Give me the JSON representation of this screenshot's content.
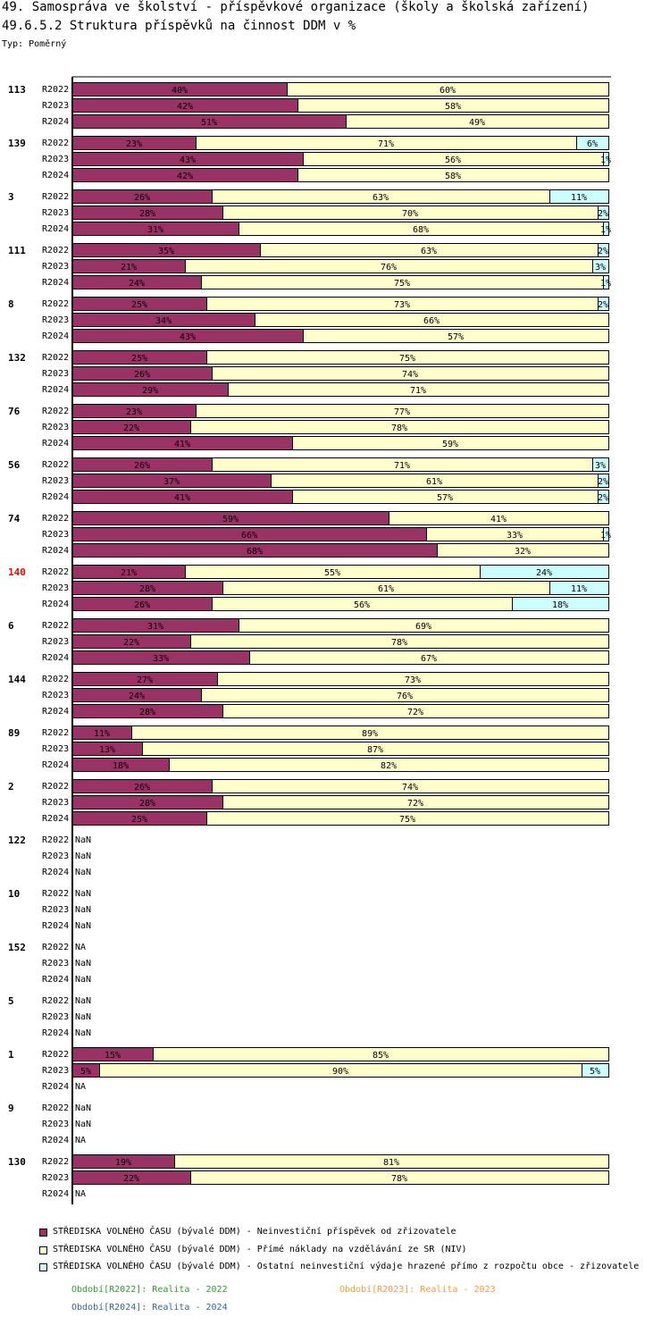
{
  "header": {
    "title": "49. Samospráva ve školství - příspěvkové organizace (školy a školská zařízení)",
    "subtitle": "49.6.5.2 Struktura příspěvků na činnost DDM v %",
    "type_label": "Typ: Poměrný"
  },
  "chart_data": {
    "type": "bar",
    "orientation": "horizontal",
    "stacked": "percent",
    "xlim": [
      0,
      100
    ],
    "series": [
      {
        "name": "STŘEDISKA VOLNÉHO ČASU (bývalé DDM)  - Neinvestiční příspěvek od zřizovatele",
        "color": "#993366"
      },
      {
        "name": "STŘEDISKA VOLNÉHO ČASU (bývalé DDM)  - Přímé náklady na vzdělávání ze SR (NIV)",
        "color": "#ffffcc"
      },
      {
        "name": "STŘEDISKA VOLNÉHO ČASU (bývalé DDM)  - Ostatní neinvestiční výdaje hrazené přímo z rozpočtu obce - zřizovatele",
        "color": "#ccffff"
      }
    ],
    "groups": [
      {
        "label": "113",
        "highlight": false,
        "rows": [
          {
            "period": "R2022",
            "values": [
              40,
              60,
              0
            ],
            "labels": [
              "40%",
              "60%",
              ""
            ]
          },
          {
            "period": "R2023",
            "values": [
              42,
              58,
              0
            ],
            "labels": [
              "42%",
              "58%",
              ""
            ]
          },
          {
            "period": "R2024",
            "values": [
              51,
              49,
              0
            ],
            "labels": [
              "51%",
              "49%",
              ""
            ]
          }
        ]
      },
      {
        "label": "139",
        "highlight": false,
        "rows": [
          {
            "period": "R2022",
            "values": [
              23,
              71,
              6
            ],
            "labels": [
              "23%",
              "71%",
              "6%"
            ]
          },
          {
            "period": "R2023",
            "values": [
              43,
              56,
              1
            ],
            "labels": [
              "43%",
              "56%",
              "1%"
            ]
          },
          {
            "period": "R2024",
            "values": [
              42,
              58,
              0
            ],
            "labels": [
              "42%",
              "58%",
              ""
            ]
          }
        ]
      },
      {
        "label": "3",
        "highlight": false,
        "rows": [
          {
            "period": "R2022",
            "values": [
              26,
              63,
              11
            ],
            "labels": [
              "26%",
              "63%",
              "11%"
            ]
          },
          {
            "period": "R2023",
            "values": [
              28,
              70,
              2
            ],
            "labels": [
              "28%",
              "70%",
              "2%"
            ]
          },
          {
            "period": "R2024",
            "values": [
              31,
              68,
              1
            ],
            "labels": [
              "31%",
              "68%",
              "1%"
            ]
          }
        ]
      },
      {
        "label": "111",
        "highlight": false,
        "rows": [
          {
            "period": "R2022",
            "values": [
              35,
              63,
              2
            ],
            "labels": [
              "35%",
              "63%",
              "2%"
            ]
          },
          {
            "period": "R2023",
            "values": [
              21,
              76,
              3
            ],
            "labels": [
              "21%",
              "76%",
              "3%"
            ]
          },
          {
            "period": "R2024",
            "values": [
              24,
              75,
              1
            ],
            "labels": [
              "24%",
              "75%",
              "1%"
            ]
          }
        ]
      },
      {
        "label": "8",
        "highlight": false,
        "rows": [
          {
            "period": "R2022",
            "values": [
              25,
              73,
              2
            ],
            "labels": [
              "25%",
              "73%",
              "2%"
            ]
          },
          {
            "period": "R2023",
            "values": [
              34,
              66,
              0
            ],
            "labels": [
              "34%",
              "66%",
              ""
            ]
          },
          {
            "period": "R2024",
            "values": [
              43,
              57,
              0
            ],
            "labels": [
              "43%",
              "57%",
              ""
            ]
          }
        ]
      },
      {
        "label": "132",
        "highlight": false,
        "rows": [
          {
            "period": "R2022",
            "values": [
              25,
              75,
              0
            ],
            "labels": [
              "25%",
              "75%",
              ""
            ]
          },
          {
            "period": "R2023",
            "values": [
              26,
              74,
              0
            ],
            "labels": [
              "26%",
              "74%",
              ""
            ]
          },
          {
            "period": "R2024",
            "values": [
              29,
              71,
              0
            ],
            "labels": [
              "29%",
              "71%",
              ""
            ]
          }
        ]
      },
      {
        "label": "76",
        "highlight": false,
        "rows": [
          {
            "period": "R2022",
            "values": [
              23,
              77,
              0
            ],
            "labels": [
              "23%",
              "77%",
              ""
            ]
          },
          {
            "period": "R2023",
            "values": [
              22,
              78,
              0
            ],
            "labels": [
              "22%",
              "78%",
              ""
            ]
          },
          {
            "period": "R2024",
            "values": [
              41,
              59,
              0
            ],
            "labels": [
              "41%",
              "59%",
              ""
            ]
          }
        ]
      },
      {
        "label": "56",
        "highlight": false,
        "rows": [
          {
            "period": "R2022",
            "values": [
              26,
              71,
              3
            ],
            "labels": [
              "26%",
              "71%",
              "3%"
            ]
          },
          {
            "period": "R2023",
            "values": [
              37,
              61,
              2
            ],
            "labels": [
              "37%",
              "61%",
              "2%"
            ]
          },
          {
            "period": "R2024",
            "values": [
              41,
              57,
              2
            ],
            "labels": [
              "41%",
              "57%",
              "2%"
            ]
          }
        ]
      },
      {
        "label": "74",
        "highlight": false,
        "rows": [
          {
            "period": "R2022",
            "values": [
              59,
              41,
              0
            ],
            "labels": [
              "59%",
              "41%",
              ""
            ]
          },
          {
            "period": "R2023",
            "values": [
              66,
              33,
              1
            ],
            "labels": [
              "66%",
              "33%",
              "1%"
            ]
          },
          {
            "period": "R2024",
            "values": [
              68,
              32,
              0
            ],
            "labels": [
              "68%",
              "32%",
              ""
            ]
          }
        ]
      },
      {
        "label": "140",
        "highlight": true,
        "rows": [
          {
            "period": "R2022",
            "values": [
              21,
              55,
              24
            ],
            "labels": [
              "21%",
              "55%",
              "24%"
            ]
          },
          {
            "period": "R2023",
            "values": [
              28,
              61,
              11
            ],
            "labels": [
              "28%",
              "61%",
              "11%"
            ]
          },
          {
            "period": "R2024",
            "values": [
              26,
              56,
              18
            ],
            "labels": [
              "26%",
              "56%",
              "18%"
            ]
          }
        ]
      },
      {
        "label": "6",
        "highlight": false,
        "rows": [
          {
            "period": "R2022",
            "values": [
              31,
              69,
              0
            ],
            "labels": [
              "31%",
              "69%",
              ""
            ]
          },
          {
            "period": "R2023",
            "values": [
              22,
              78,
              0
            ],
            "labels": [
              "22%",
              "78%",
              ""
            ]
          },
          {
            "period": "R2024",
            "values": [
              33,
              67,
              0
            ],
            "labels": [
              "33%",
              "67%",
              ""
            ]
          }
        ]
      },
      {
        "label": "144",
        "highlight": false,
        "rows": [
          {
            "period": "R2022",
            "values": [
              27,
              73,
              0
            ],
            "labels": [
              "27%",
              "73%",
              ""
            ]
          },
          {
            "period": "R2023",
            "values": [
              24,
              76,
              0
            ],
            "labels": [
              "24%",
              "76%",
              ""
            ]
          },
          {
            "period": "R2024",
            "values": [
              28,
              72,
              0
            ],
            "labels": [
              "28%",
              "72%",
              ""
            ]
          }
        ]
      },
      {
        "label": "89",
        "highlight": false,
        "rows": [
          {
            "period": "R2022",
            "values": [
              11,
              89,
              0
            ],
            "labels": [
              "11%",
              "89%",
              ""
            ]
          },
          {
            "period": "R2023",
            "values": [
              13,
              87,
              0
            ],
            "labels": [
              "13%",
              "87%",
              ""
            ]
          },
          {
            "period": "R2024",
            "values": [
              18,
              82,
              0
            ],
            "labels": [
              "18%",
              "82%",
              ""
            ]
          }
        ]
      },
      {
        "label": "2",
        "highlight": false,
        "rows": [
          {
            "period": "R2022",
            "values": [
              26,
              74,
              0
            ],
            "labels": [
              "26%",
              "74%",
              ""
            ]
          },
          {
            "period": "R2023",
            "values": [
              28,
              72,
              0
            ],
            "labels": [
              "28%",
              "72%",
              ""
            ]
          },
          {
            "period": "R2024",
            "values": [
              25,
              75,
              0
            ],
            "labels": [
              "25%",
              "75%",
              ""
            ]
          }
        ]
      },
      {
        "label": "122",
        "highlight": false,
        "rows": [
          {
            "period": "R2022",
            "values": null,
            "text": "NaN"
          },
          {
            "period": "R2023",
            "values": null,
            "text": "NaN"
          },
          {
            "period": "R2024",
            "values": null,
            "text": "NaN"
          }
        ]
      },
      {
        "label": "10",
        "highlight": false,
        "rows": [
          {
            "period": "R2022",
            "values": null,
            "text": "NaN"
          },
          {
            "period": "R2023",
            "values": null,
            "text": "NaN"
          },
          {
            "period": "R2024",
            "values": null,
            "text": "NaN"
          }
        ]
      },
      {
        "label": "152",
        "highlight": false,
        "rows": [
          {
            "period": "R2022",
            "values": null,
            "text": "NA"
          },
          {
            "period": "R2023",
            "values": null,
            "text": "NaN"
          },
          {
            "period": "R2024",
            "values": null,
            "text": "NaN"
          }
        ]
      },
      {
        "label": "5",
        "highlight": false,
        "rows": [
          {
            "period": "R2022",
            "values": null,
            "text": "NaN"
          },
          {
            "period": "R2023",
            "values": null,
            "text": "NaN"
          },
          {
            "period": "R2024",
            "values": null,
            "text": "NaN"
          }
        ]
      },
      {
        "label": "1",
        "highlight": false,
        "rows": [
          {
            "period": "R2022",
            "values": [
              15,
              85,
              0
            ],
            "labels": [
              "15%",
              "85%",
              ""
            ]
          },
          {
            "period": "R2023",
            "values": [
              5,
              90,
              5
            ],
            "labels": [
              "5%",
              "90%",
              "5%"
            ]
          },
          {
            "period": "R2024",
            "values": null,
            "text": "NA"
          }
        ]
      },
      {
        "label": "9",
        "highlight": false,
        "rows": [
          {
            "period": "R2022",
            "values": null,
            "text": "NaN"
          },
          {
            "period": "R2023",
            "values": null,
            "text": "NaN"
          },
          {
            "period": "R2024",
            "values": null,
            "text": "NA"
          }
        ]
      },
      {
        "label": "130",
        "highlight": false,
        "rows": [
          {
            "period": "R2022",
            "values": [
              19,
              81,
              0
            ],
            "labels": [
              "19%",
              "81%",
              ""
            ]
          },
          {
            "period": "R2023",
            "values": [
              22,
              78,
              0
            ],
            "labels": [
              "22%",
              "78%",
              ""
            ]
          },
          {
            "period": "R2024",
            "values": null,
            "text": "NA"
          }
        ]
      }
    ]
  },
  "periods": [
    {
      "text": "Období[R2022]: Realita - 2022",
      "color": "#339933"
    },
    {
      "text": "Období[R2023]: Realita - 2023",
      "color": "#ff9933"
    },
    {
      "text": "Období[R2024]: Realita - 2024",
      "color": "#336699"
    }
  ],
  "colors": {
    "highlight_label": "#ff0000",
    "axis": "#000000"
  }
}
